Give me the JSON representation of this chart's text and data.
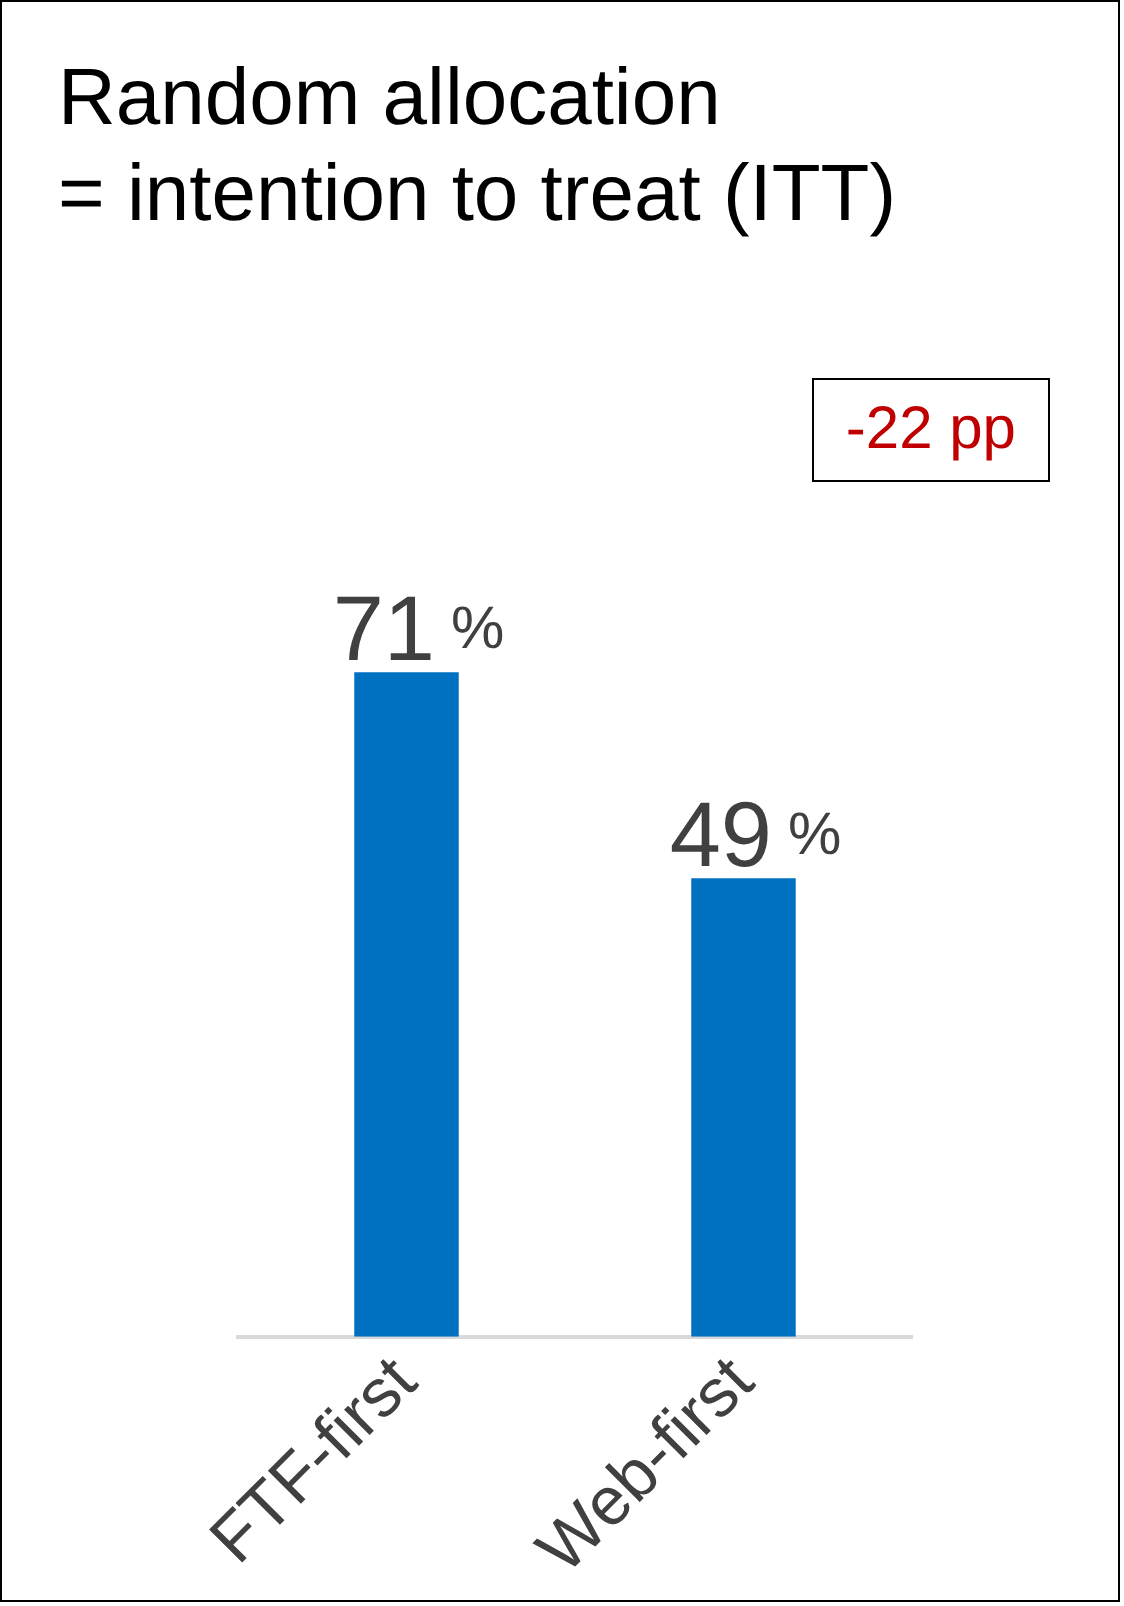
{
  "chart_data": {
    "type": "bar",
    "title": "Random allocation\n= intention to treat (ITT)",
    "categories": [
      "FTF-first",
      "Web-first"
    ],
    "values": [
      71,
      49
    ],
    "color": "#0070c0",
    "value_labels": [
      "71 %",
      "49 %"
    ],
    "tick_labels": "x",
    "annotations": [
      "-22 pp"
    ],
    "grid": false,
    "legend": false
  }
}
